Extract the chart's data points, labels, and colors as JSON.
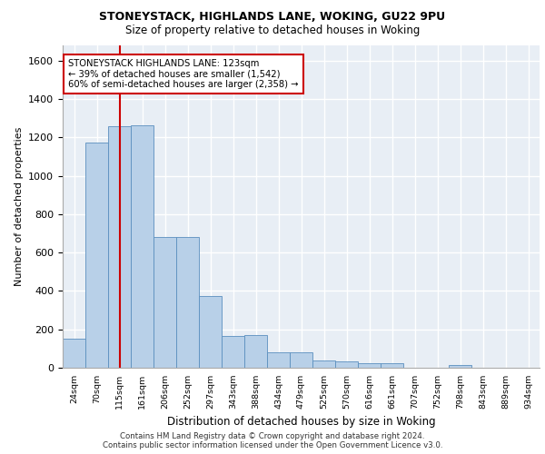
{
  "title_line1": "STONEYSTACK, HIGHLANDS LANE, WOKING, GU22 9PU",
  "title_line2": "Size of property relative to detached houses in Woking",
  "xlabel": "Distribution of detached houses by size in Woking",
  "ylabel": "Number of detached properties",
  "categories": [
    "24sqm",
    "70sqm",
    "115sqm",
    "161sqm",
    "206sqm",
    "252sqm",
    "297sqm",
    "343sqm",
    "388sqm",
    "434sqm",
    "479sqm",
    "525sqm",
    "570sqm",
    "616sqm",
    "661sqm",
    "707sqm",
    "752sqm",
    "798sqm",
    "843sqm",
    "889sqm",
    "934sqm"
  ],
  "values": [
    150,
    1175,
    1260,
    1265,
    680,
    680,
    375,
    168,
    170,
    80,
    80,
    38,
    35,
    22,
    22,
    0,
    0,
    12,
    0,
    0,
    0
  ],
  "bar_color": "#b8d0e8",
  "bar_edge_color": "#5a8fbf",
  "vline_x": 2.0,
  "vline_color": "#cc0000",
  "annotation_text": "STONEYSTACK HIGHLANDS LANE: 123sqm\n← 39% of detached houses are smaller (1,542)\n60% of semi-detached houses are larger (2,358) →",
  "annotation_box_color": "#ffffff",
  "annotation_box_edge": "#cc0000",
  "ylim": [
    0,
    1680
  ],
  "yticks": [
    0,
    200,
    400,
    600,
    800,
    1000,
    1200,
    1400,
    1600
  ],
  "background_color": "#e8eef5",
  "grid_color": "#ffffff",
  "footer_line1": "Contains HM Land Registry data © Crown copyright and database right 2024.",
  "footer_line2": "Contains public sector information licensed under the Open Government Licence v3.0."
}
